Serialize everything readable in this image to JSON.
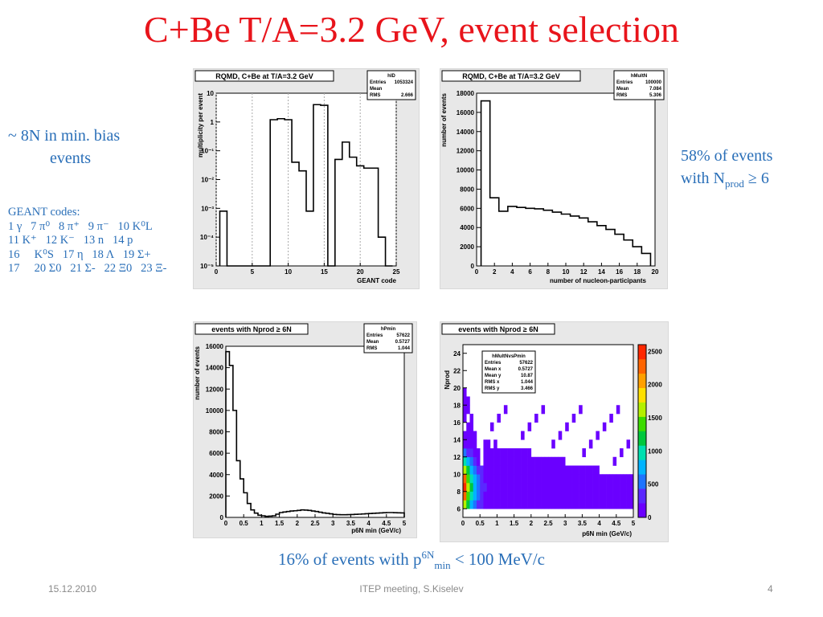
{
  "slide": {
    "title": "C+Be T/A=3.2 GeV, event selection",
    "left_note_line1": "~ 8N in min. bias",
    "left_note_line2": "events",
    "geant_codes": "GEANT codes:\n1 γ   7 π⁰   8 π⁺   9 π⁻   10 K⁰L\n11 K⁺   12 K⁻   13 n   14 p\n16     K⁰S   17 η   18 Λ   19 Σ+\n17     20 Σ0   21 Σ-   22 Ξ0   23 Ξ-",
    "right_note_line1": "58% of events",
    "right_note_with": "with N",
    "right_note_sub": "prod",
    "right_note_tail": " ≥ 6",
    "bottom_note_pre": "16% of events with p",
    "bottom_note_sup": "6N",
    "bottom_note_sub": "min",
    "bottom_note_post": " < 100 MeV/c",
    "footer_date": "15.12.2010",
    "footer_center": "ITEP meeting,      S.Kiselev",
    "footer_page": "4"
  },
  "colors": {
    "title": "#e8141b",
    "text_blue": "#2a6fb8",
    "panel_bg": "#e8e8e8",
    "fill_purple": "#6a00ff"
  },
  "chart_data": [
    {
      "type": "bar",
      "title": "RQMD, C+Be at T/A=3.2 GeV",
      "stats": [
        [
          "hID",
          ""
        ],
        [
          "Entries",
          "1053324"
        ],
        [
          "Mean",
          ""
        ],
        [
          "RMS",
          "2.666"
        ]
      ],
      "xlabel": "GEANT code",
      "ylabel": "multiplicity per event",
      "log_y": true,
      "xlim": [
        0,
        25
      ],
      "ylim": [
        1e-05,
        10
      ],
      "x_ticks": [
        0,
        5,
        10,
        15,
        20,
        25
      ],
      "y_ticks": [
        "10⁻⁵",
        "10⁻⁴",
        "10⁻³",
        "10⁻²",
        "10⁻¹",
        "1",
        "10"
      ],
      "x": [
        1,
        2,
        3,
        4,
        5,
        6,
        7,
        8,
        9,
        10,
        11,
        12,
        13,
        14,
        15,
        16,
        17,
        18,
        19,
        20,
        21,
        22,
        23,
        24
      ],
      "values": [
        0.0008,
        1e-05,
        1e-05,
        1e-05,
        1e-05,
        1e-05,
        1e-05,
        1.2,
        1.3,
        1.2,
        0.04,
        0.02,
        0.0008,
        4.0,
        3.8,
        1e-05,
        0.05,
        0.2,
        0.06,
        0.03,
        0.025,
        0.025,
        0.0001,
        1e-05
      ]
    },
    {
      "type": "bar",
      "title": "RQMD, C+Be at T/A=3.2 GeV",
      "stats": [
        [
          "hMultN",
          ""
        ],
        [
          "Entries",
          "100000"
        ],
        [
          "Mean",
          "7.084"
        ],
        [
          "RMS",
          "5.306"
        ]
      ],
      "xlabel": "number of nucleon-participants",
      "ylabel": "number of events",
      "xlim": [
        0,
        20
      ],
      "ylim": [
        0,
        18000
      ],
      "x_ticks": [
        0,
        2,
        4,
        6,
        8,
        10,
        12,
        14,
        16,
        18,
        20
      ],
      "y_ticks": [
        0,
        2000,
        4000,
        6000,
        8000,
        10000,
        12000,
        14000,
        16000,
        18000
      ],
      "x": [
        1,
        2,
        3,
        4,
        5,
        6,
        7,
        8,
        9,
        10,
        11,
        12,
        13,
        14,
        15,
        16,
        17,
        18,
        19
      ],
      "values": [
        17200,
        7100,
        5700,
        6200,
        6100,
        6000,
        5950,
        5800,
        5600,
        5400,
        5200,
        5000,
        4600,
        4200,
        3800,
        3300,
        2700,
        2000,
        1300
      ]
    },
    {
      "type": "bar",
      "title": "events with Nprod ≥ 6N",
      "stats": [
        [
          "hPmin",
          ""
        ],
        [
          "Entries",
          "57622"
        ],
        [
          "Mean",
          "0.5727"
        ],
        [
          "RMS",
          "1.044"
        ]
      ],
      "xlabel": "p6N min (GeV/c)",
      "ylabel": "number of events",
      "xlim": [
        0,
        5
      ],
      "ylim": [
        0,
        16000
      ],
      "x_ticks": [
        "0",
        "0.5",
        "1",
        "1.5",
        "2",
        "2.5",
        "3",
        "3.5",
        "4",
        "4.5",
        "5"
      ],
      "y_ticks": [
        0,
        2000,
        4000,
        6000,
        8000,
        10000,
        12000,
        14000,
        16000
      ],
      "x": [
        0.05,
        0.15,
        0.25,
        0.35,
        0.45,
        0.55,
        0.65,
        0.75,
        0.85,
        0.95,
        1.05,
        1.15,
        1.25,
        1.35,
        1.45,
        1.55,
        1.65,
        1.75,
        1.85,
        1.95,
        2.05,
        2.15,
        2.25,
        2.35,
        2.45,
        2.55,
        2.65,
        2.75,
        2.85,
        2.95,
        3.05,
        3.15,
        3.25,
        3.35,
        3.45,
        3.55,
        3.65,
        3.75,
        3.85,
        3.95,
        4.05,
        4.15,
        4.25,
        4.35,
        4.45,
        4.55,
        4.65,
        4.75,
        4.85,
        4.95
      ],
      "values": [
        15500,
        14200,
        10000,
        5300,
        3600,
        2300,
        1300,
        700,
        400,
        200,
        150,
        100,
        120,
        150,
        300,
        450,
        500,
        550,
        600,
        620,
        650,
        700,
        680,
        650,
        600,
        550,
        480,
        420,
        380,
        330,
        280,
        260,
        250,
        250,
        260,
        270,
        290,
        300,
        320,
        340,
        360,
        380,
        400,
        420,
        440,
        450,
        450,
        440,
        430,
        420
      ]
    },
    {
      "type": "heatmap",
      "title": "events with Nprod ≥ 6N",
      "stats": [
        [
          "hMultNvsPmin",
          ""
        ],
        [
          "Entries",
          "57622"
        ],
        [
          "Mean x",
          "0.5727"
        ],
        [
          "Mean y",
          "10.87"
        ],
        [
          "RMS x",
          "1.044"
        ],
        [
          "RMS y",
          "3.466"
        ]
      ],
      "xlabel": "p6N min (GeV/c)",
      "ylabel": "Nprod",
      "xlim": [
        0,
        5
      ],
      "ylim": [
        5,
        25
      ],
      "x_ticks": [
        "0",
        "0.5",
        "1",
        "1.5",
        "2",
        "2.5",
        "3",
        "3.5",
        "4",
        "4.5",
        "5"
      ],
      "y_ticks": [
        6,
        8,
        10,
        12,
        14,
        16,
        18,
        20,
        22,
        24
      ],
      "z_ticks": [
        0,
        500,
        1000,
        1500,
        2000,
        2500
      ],
      "zlim": [
        0,
        2600
      ],
      "colorscale": [
        "#6a00ff",
        "#5a28ff",
        "#1e74ff",
        "#00b4ff",
        "#00e0b0",
        "#00c83c",
        "#3cdc00",
        "#b4f000",
        "#ffe000",
        "#ffa000",
        "#ff6400",
        "#ff2800"
      ]
    }
  ]
}
